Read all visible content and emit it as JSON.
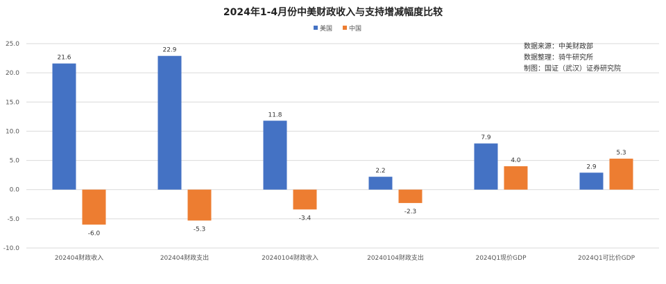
{
  "chart_data": {
    "type": "bar",
    "title": "2024年1-4月份中美财政收入与支持增减幅度比较",
    "categories": [
      "202404财政收入",
      "202404财政支出",
      "20240104财政收入",
      "20240104财政支出",
      "2024Q1现价GDP",
      "2024Q1可比价GDP"
    ],
    "series": [
      {
        "name": "美国",
        "values": [
          21.6,
          22.9,
          11.8,
          2.2,
          7.9,
          2.9
        ],
        "color": "#4472C4"
      },
      {
        "name": "中国",
        "values": [
          -6.0,
          -5.3,
          -3.4,
          -2.3,
          4.0,
          5.3
        ],
        "color": "#ED7D31"
      }
    ],
    "ylim": [
      -10,
      25
    ],
    "yticks": [
      "25.0",
      "20.0",
      "15.0",
      "10.0",
      "5.0",
      "0.0",
      "-5.0",
      "-10.0"
    ],
    "ytick_values": [
      25,
      20,
      15,
      10,
      5,
      0,
      -5,
      -10
    ],
    "grid": true,
    "legend_position": "top-center",
    "notes": [
      "数据来源：中美财政部",
      "数据整理：骑牛研究所",
      "制图：国证（武汉）证券研究院"
    ]
  }
}
